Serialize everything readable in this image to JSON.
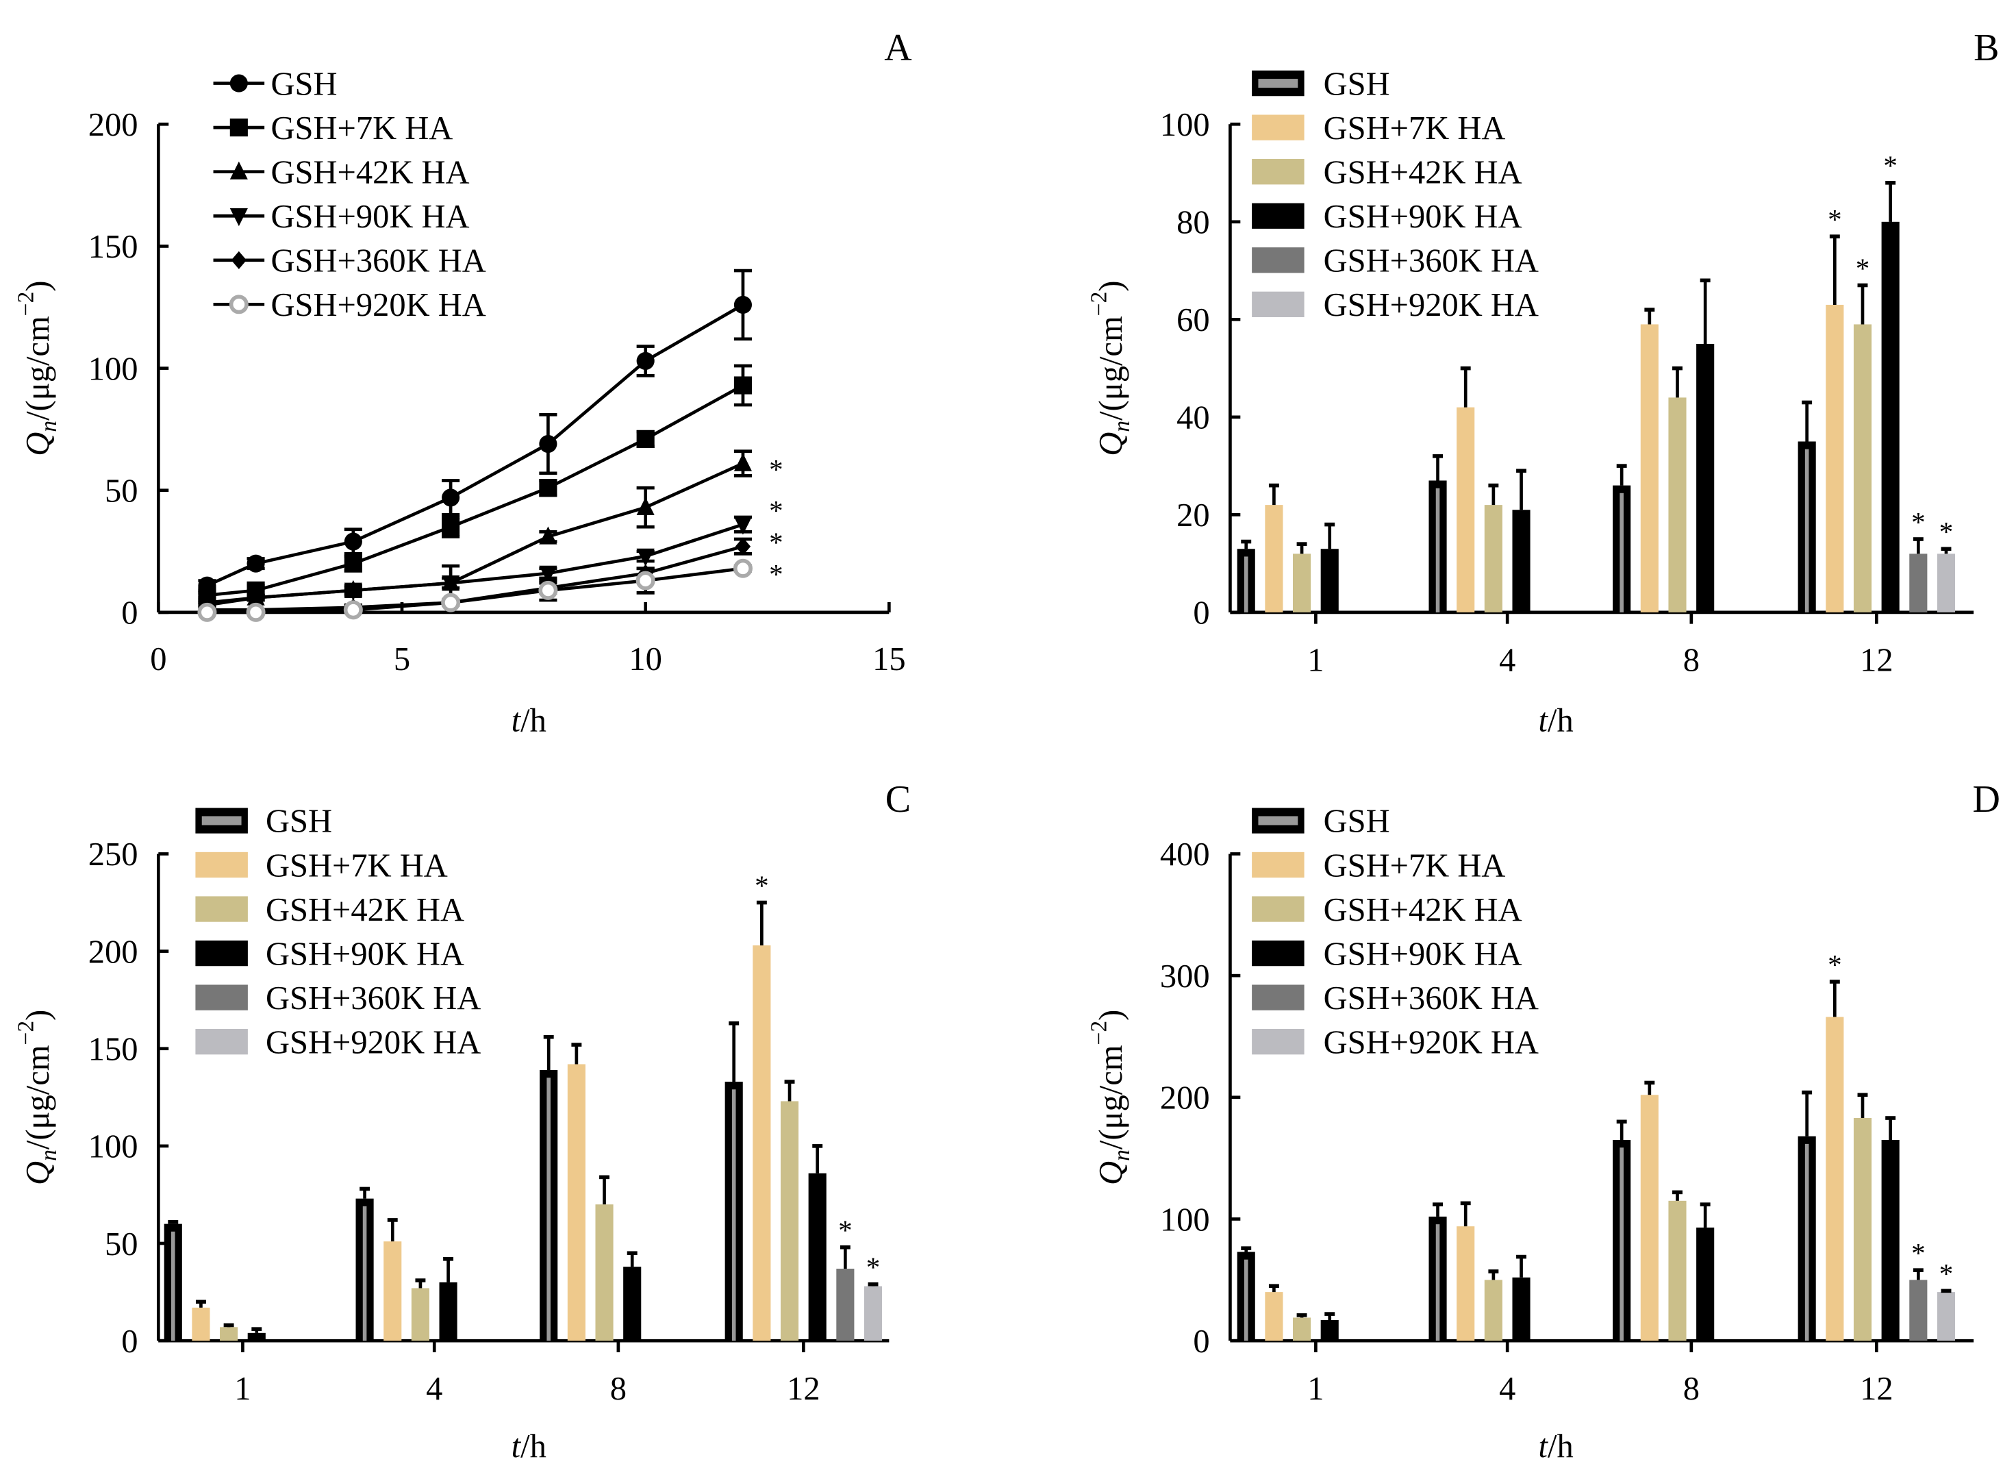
{
  "chart_data": [
    {
      "panel": "A",
      "type": "line",
      "xlabel_italic": "t",
      "xlabel_unit": "/h",
      "ylabel_q": "Q",
      "ylabel_sub": "n",
      "ylabel_unit": "/(μg/cm",
      "ylabel_sup": "−2",
      "ylabel_close": ")",
      "xlim": [
        0,
        15
      ],
      "ylim": [
        0,
        200
      ],
      "xticks": [
        0,
        5,
        10,
        15
      ],
      "yticks": [
        0,
        50,
        100,
        150,
        200
      ],
      "legend_position": "top-left",
      "x": [
        1,
        2,
        4,
        6,
        8,
        10,
        12
      ],
      "series": [
        {
          "name": "GSH",
          "marker": "filled-circle",
          "values": [
            11,
            20,
            29,
            47,
            69,
            103,
            126
          ],
          "errors": [
            2,
            2,
            5,
            7,
            12,
            6,
            14
          ],
          "significant": false
        },
        {
          "name": "GSH+7K HA",
          "marker": "filled-square",
          "values": [
            7,
            9,
            20,
            35,
            51,
            71,
            93
          ],
          "errors": [
            1,
            2,
            3,
            4,
            3,
            3,
            8
          ],
          "significant": false
        },
        {
          "name": "GSH+42K HA",
          "marker": "filled-triangle-up",
          "values": [
            4,
            6,
            9,
            12,
            31,
            43,
            61
          ],
          "errors": [
            1,
            1,
            2,
            7,
            2,
            8,
            5
          ],
          "significant": true
        },
        {
          "name": "GSH+90K HA",
          "marker": "filled-triangle-down",
          "values": [
            3,
            6,
            9,
            12,
            16,
            23,
            36
          ],
          "errors": [
            1,
            1,
            1,
            2,
            2,
            2,
            3
          ],
          "significant": true
        },
        {
          "name": "GSH+360K HA",
          "marker": "filled-diamond",
          "values": [
            1,
            1,
            2,
            4,
            10,
            16,
            27
          ],
          "errors": [
            0,
            0,
            1,
            1,
            2,
            2,
            3
          ],
          "significant": true
        },
        {
          "name": "GSH+920K HA",
          "marker": "open-circle",
          "values": [
            0,
            0,
            1,
            4,
            9,
            13,
            18
          ],
          "errors": [
            0,
            0,
            1,
            1,
            4,
            5,
            1
          ],
          "significant": true
        }
      ]
    },
    {
      "panel": "B",
      "type": "bar",
      "xlabel_italic": "t",
      "xlabel_unit": "/h",
      "ylabel_q": "Q",
      "ylabel_sub": "n",
      "ylabel_unit": "/(μg/cm",
      "ylabel_sup": "−2",
      "ylabel_close": ")",
      "ylim": [
        0,
        100
      ],
      "yticks": [
        0,
        20,
        40,
        60,
        80,
        100
      ],
      "categories": [
        "1",
        "4",
        "8",
        "12"
      ],
      "legend_position": "top-left",
      "series": [
        {
          "name": "GSH",
          "color": "#000000",
          "values": [
            13,
            27,
            26,
            35
          ],
          "errors": [
            1.5,
            5,
            4,
            8
          ],
          "significant": [
            false,
            false,
            false,
            false
          ]
        },
        {
          "name": "GSH+7K HA",
          "color": "#EEC98C",
          "values": [
            22,
            42,
            59,
            63
          ],
          "errors": [
            4,
            8,
            3,
            14
          ],
          "significant": [
            false,
            false,
            false,
            true
          ]
        },
        {
          "name": "GSH+42K HA",
          "color": "#CBBF8A",
          "values": [
            12,
            22,
            44,
            59
          ],
          "errors": [
            2,
            4,
            6,
            8
          ],
          "significant": [
            false,
            false,
            false,
            true
          ]
        },
        {
          "name": "GSH+90K HA",
          "color": "#000000",
          "values": [
            13,
            21,
            55,
            80
          ],
          "errors": [
            5,
            8,
            13,
            8
          ],
          "significant": [
            false,
            false,
            false,
            true
          ]
        },
        {
          "name": "GSH+360K HA",
          "color": "#777777",
          "values": [
            null,
            null,
            null,
            12
          ],
          "errors": [
            null,
            null,
            null,
            3
          ],
          "significant": [
            false,
            false,
            false,
            true
          ]
        },
        {
          "name": "GSH+920K HA",
          "color": "#BBBBC0",
          "values": [
            null,
            null,
            null,
            12
          ],
          "errors": [
            null,
            null,
            null,
            1
          ],
          "significant": [
            false,
            false,
            false,
            true
          ]
        }
      ]
    },
    {
      "panel": "C",
      "type": "bar",
      "xlabel_italic": "t",
      "xlabel_unit": "/h",
      "ylabel_q": "Q",
      "ylabel_sub": "n",
      "ylabel_unit": "/(μg/cm",
      "ylabel_sup": "−2",
      "ylabel_close": ")",
      "ylim": [
        0,
        250
      ],
      "yticks": [
        0,
        50,
        100,
        150,
        200,
        250
      ],
      "categories": [
        "1",
        "4",
        "8",
        "12"
      ],
      "legend_position": "top-left",
      "series": [
        {
          "name": "GSH",
          "color": "#000000",
          "values": [
            60,
            73,
            139,
            133
          ],
          "errors": [
            1,
            5,
            17,
            30
          ],
          "significant": [
            false,
            false,
            false,
            false
          ]
        },
        {
          "name": "GSH+7K HA",
          "color": "#EEC98C",
          "values": [
            17,
            51,
            142,
            203
          ],
          "errors": [
            3,
            11,
            10,
            22
          ],
          "significant": [
            false,
            false,
            false,
            true
          ]
        },
        {
          "name": "GSH+42K HA",
          "color": "#CBBF8A",
          "values": [
            7,
            27,
            70,
            123
          ],
          "errors": [
            1,
            4,
            14,
            10
          ],
          "significant": [
            false,
            false,
            false,
            false
          ]
        },
        {
          "name": "GSH+90K HA",
          "color": "#000000",
          "values": [
            4,
            30,
            38,
            86
          ],
          "errors": [
            2,
            12,
            7,
            14
          ],
          "significant": [
            false,
            false,
            false,
            false
          ]
        },
        {
          "name": "GSH+360K HA",
          "color": "#777777",
          "values": [
            null,
            null,
            null,
            37
          ],
          "errors": [
            null,
            null,
            null,
            11
          ],
          "significant": [
            false,
            false,
            false,
            true
          ]
        },
        {
          "name": "GSH+920K HA",
          "color": "#BBBBC0",
          "values": [
            null,
            null,
            null,
            28
          ],
          "errors": [
            null,
            null,
            null,
            1
          ],
          "significant": [
            false,
            false,
            false,
            true
          ]
        }
      ]
    },
    {
      "panel": "D",
      "type": "bar",
      "xlabel_italic": "t",
      "xlabel_unit": "/h",
      "ylabel_q": "Q",
      "ylabel_sub": "n",
      "ylabel_unit": "/(μg/cm",
      "ylabel_sup": "−2",
      "ylabel_close": ")",
      "ylim": [
        0,
        400
      ],
      "yticks": [
        0,
        100,
        200,
        300,
        400
      ],
      "categories": [
        "1",
        "4",
        "8",
        "12"
      ],
      "legend_position": "top-left",
      "series": [
        {
          "name": "GSH",
          "color": "#000000",
          "values": [
            73,
            102,
            165,
            168
          ],
          "errors": [
            3,
            10,
            15,
            36
          ],
          "significant": [
            false,
            false,
            false,
            false
          ]
        },
        {
          "name": "GSH+7K HA",
          "color": "#EEC98C",
          "values": [
            40,
            94,
            202,
            266
          ],
          "errors": [
            5,
            19,
            10,
            29
          ],
          "significant": [
            false,
            false,
            false,
            true
          ]
        },
        {
          "name": "GSH+42K HA",
          "color": "#CBBF8A",
          "values": [
            19,
            50,
            115,
            183
          ],
          "errors": [
            2,
            7,
            7,
            19
          ],
          "significant": [
            false,
            false,
            false,
            false
          ]
        },
        {
          "name": "GSH+90K HA",
          "color": "#000000",
          "values": [
            17,
            52,
            93,
            165
          ],
          "errors": [
            5,
            17,
            19,
            18
          ],
          "significant": [
            false,
            false,
            false,
            false
          ]
        },
        {
          "name": "GSH+360K HA",
          "color": "#777777",
          "values": [
            null,
            null,
            null,
            50
          ],
          "errors": [
            null,
            null,
            null,
            8
          ],
          "significant": [
            false,
            false,
            false,
            true
          ]
        },
        {
          "name": "GSH+920K HA",
          "color": "#BBBBC0",
          "values": [
            null,
            null,
            null,
            40
          ],
          "errors": [
            null,
            null,
            null,
            1
          ],
          "significant": [
            false,
            false,
            false,
            true
          ]
        }
      ]
    }
  ],
  "significance_mark": "*"
}
